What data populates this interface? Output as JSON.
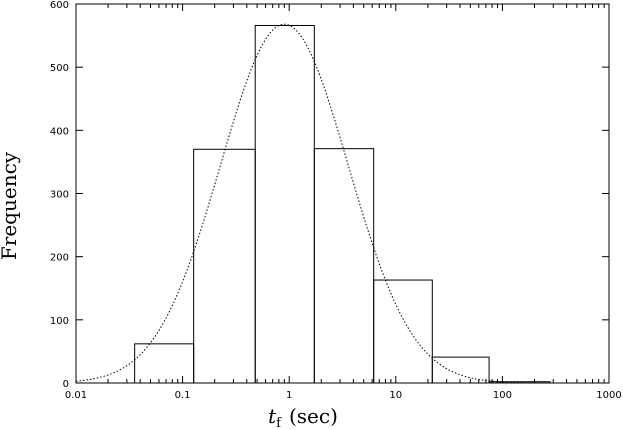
{
  "chart_data": {
    "type": "bar",
    "title": "",
    "xlabel": {
      "symbol": "t",
      "subscript": "f",
      "unit": "(sec)"
    },
    "ylabel": "Frequency",
    "x_scale": "log",
    "xlim": [
      0.01,
      1000
    ],
    "ylim": [
      0,
      600
    ],
    "x_ticks": [
      {
        "value": 0.01,
        "label": "0.01"
      },
      {
        "value": 0.1,
        "label": "0.1"
      },
      {
        "value": 1,
        "label": "1"
      },
      {
        "value": 10,
        "label": "10"
      },
      {
        "value": 100,
        "label": "100"
      },
      {
        "value": 1000,
        "label": "1000"
      }
    ],
    "y_ticks": [
      {
        "value": 0,
        "label": "0"
      },
      {
        "value": 100,
        "label": "100"
      },
      {
        "value": 200,
        "label": "200"
      },
      {
        "value": 300,
        "label": "300"
      },
      {
        "value": 400,
        "label": "400"
      },
      {
        "value": 500,
        "label": "500"
      },
      {
        "value": 600,
        "label": "600"
      }
    ],
    "histogram": {
      "bins": [
        {
          "x0": 0.0093,
          "x1": 0.0355,
          "count": 0
        },
        {
          "x0": 0.0355,
          "x1": 0.127,
          "count": 62
        },
        {
          "x0": 0.127,
          "x1": 0.48,
          "count": 370
        },
        {
          "x0": 0.48,
          "x1": 1.72,
          "count": 566
        },
        {
          "x0": 1.72,
          "x1": 6.2,
          "count": 371
        },
        {
          "x0": 6.2,
          "x1": 22.0,
          "count": 163
        },
        {
          "x0": 22.0,
          "x1": 75.0,
          "count": 41
        },
        {
          "x0": 75.0,
          "x1": 280.0,
          "count": 2
        }
      ]
    },
    "fit_curve": {
      "style": "dotted",
      "model": "lognormal",
      "peak": 568,
      "peak_x": 0.9,
      "sigma_log10": 0.6
    },
    "grid": false,
    "legend": "none"
  }
}
